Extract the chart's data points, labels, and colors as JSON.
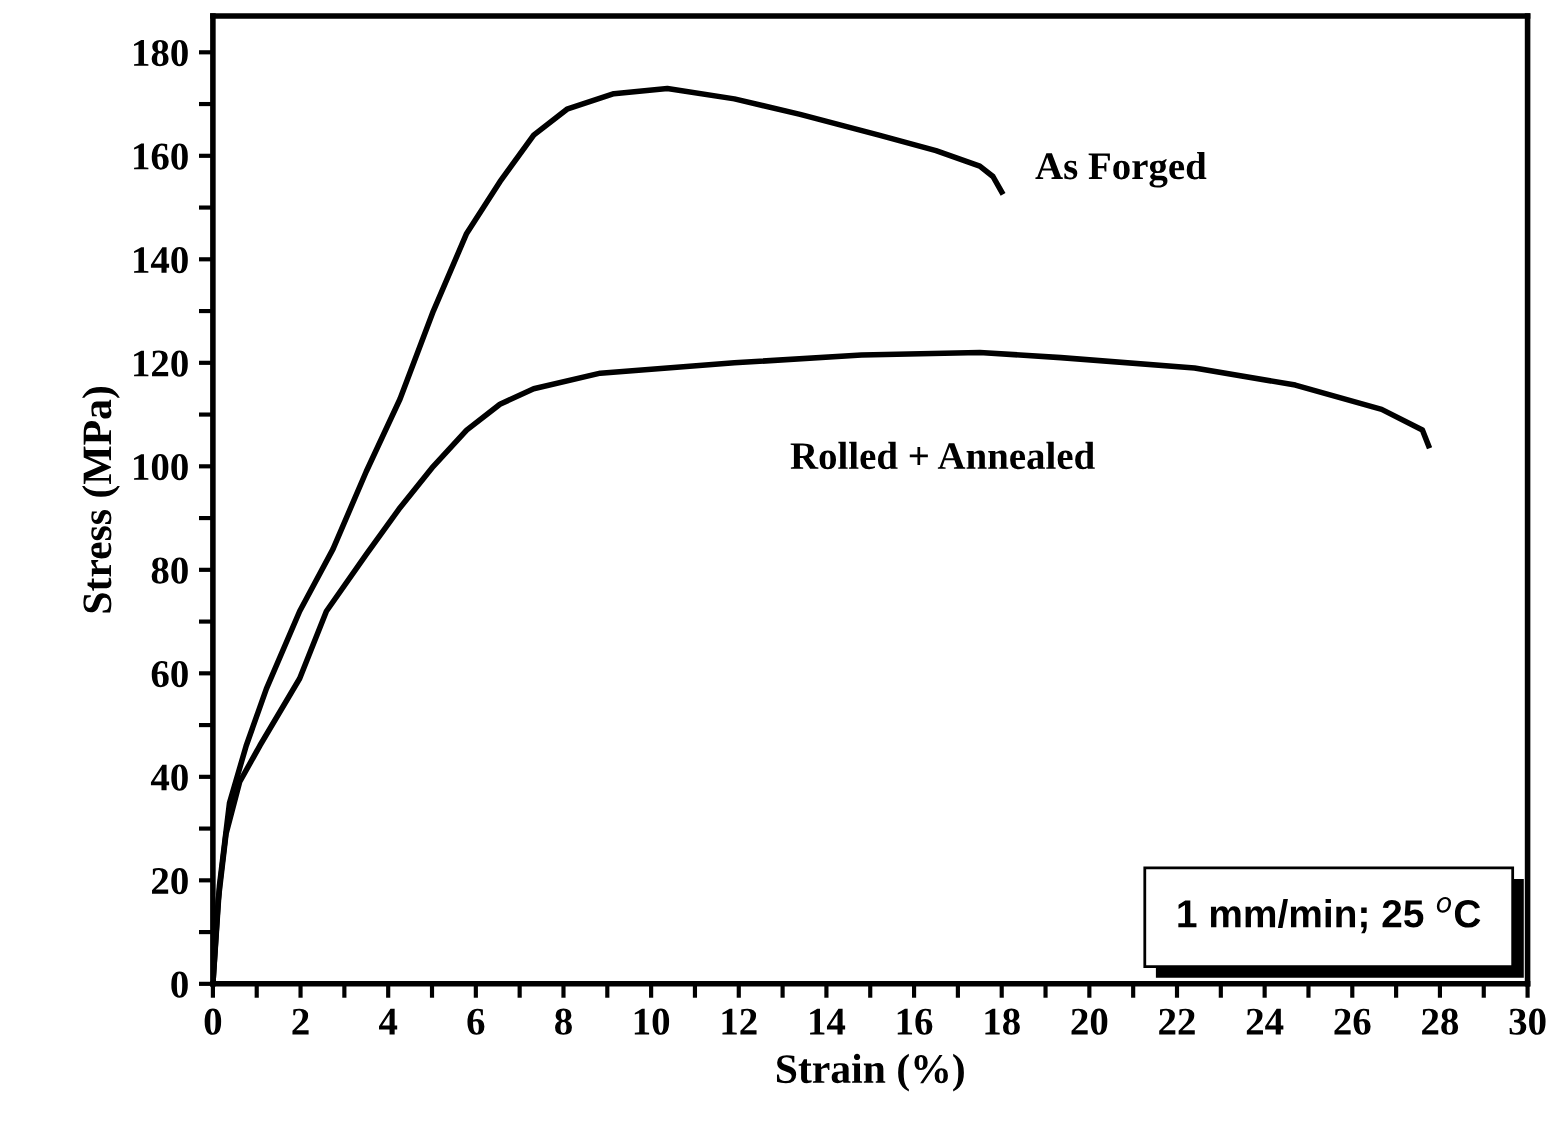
{
  "chart_data": {
    "type": "line",
    "xlabel": "Strain (%)",
    "ylabel": "Stress (MPa)",
    "xlim": [
      0,
      30
    ],
    "ylim": [
      0,
      187
    ],
    "xticks": [
      0,
      {
        "value": 1,
        "label": null
      },
      2,
      {
        "value": 3,
        "label": null
      },
      4,
      {
        "value": 5,
        "label": null
      },
      6,
      {
        "value": 7,
        "label": null
      },
      8,
      {
        "value": 9,
        "label": null
      },
      10,
      {
        "value": 11,
        "label": null
      },
      12,
      {
        "value": 13,
        "label": null
      },
      14,
      {
        "value": 15,
        "label": null
      },
      16,
      {
        "value": 17,
        "label": null
      },
      18,
      {
        "value": 19,
        "label": null
      },
      20,
      {
        "value": 21,
        "label": null
      },
      22,
      {
        "value": 23,
        "label": null
      },
      24,
      {
        "value": 25,
        "label": null
      },
      26,
      {
        "value": 27,
        "label": null
      },
      28,
      {
        "value": 29,
        "label": null
      },
      30
    ],
    "yticks": [
      0,
      {
        "value": 10,
        "label": null
      },
      20,
      {
        "value": 30,
        "label": null
      },
      40,
      {
        "value": 50,
        "label": null
      },
      60,
      {
        "value": 70,
        "label": null
      },
      80,
      {
        "value": 90,
        "label": null
      },
      100,
      {
        "value": 110,
        "label": null
      },
      120,
      {
        "value": 130,
        "label": null
      },
      140,
      {
        "value": 150,
        "label": null
      },
      160,
      {
        "value": 170,
        "label": null
      },
      180
    ],
    "grid": false,
    "legend": false,
    "marker": "none",
    "line_style": "solid",
    "annotations": [
      "1 mm/min; 25 $^{o}$C"
    ],
    "series": [
      {
        "name": "As Forged",
        "color": "#000000",
        "x": [
          0,
          0.15,
          0.38,
          0.76,
          1.22,
          1.98,
          2.74,
          3.5,
          4.27,
          5.03,
          5.79,
          6.55,
          7.32,
          8.08,
          9.15,
          10.37,
          11.9,
          13.4,
          15.2,
          16.5,
          17.5,
          17.8,
          18.0
        ],
        "values": [
          0,
          19,
          35,
          46,
          57,
          72,
          84,
          99,
          113,
          130,
          145,
          155,
          164,
          169,
          172,
          173,
          171,
          168,
          164,
          161,
          158,
          156,
          153
        ]
      },
      {
        "name": "Rolled + Annealed",
        "color": "#000000",
        "x": [
          0,
          0.12,
          0.3,
          0.61,
          1.07,
          1.98,
          2.59,
          3.5,
          4.27,
          5.03,
          5.79,
          6.55,
          7.32,
          8.84,
          11.9,
          14.8,
          17.5,
          19.35,
          22.4,
          24.7,
          26.67,
          27.6,
          27.74
        ],
        "values": [
          0,
          16,
          29,
          39,
          46,
          59,
          72,
          83,
          92,
          100,
          107,
          112,
          115,
          118,
          120,
          121.5,
          122,
          121,
          119,
          115.7,
          111,
          107,
          104
        ]
      }
    ]
  }
}
